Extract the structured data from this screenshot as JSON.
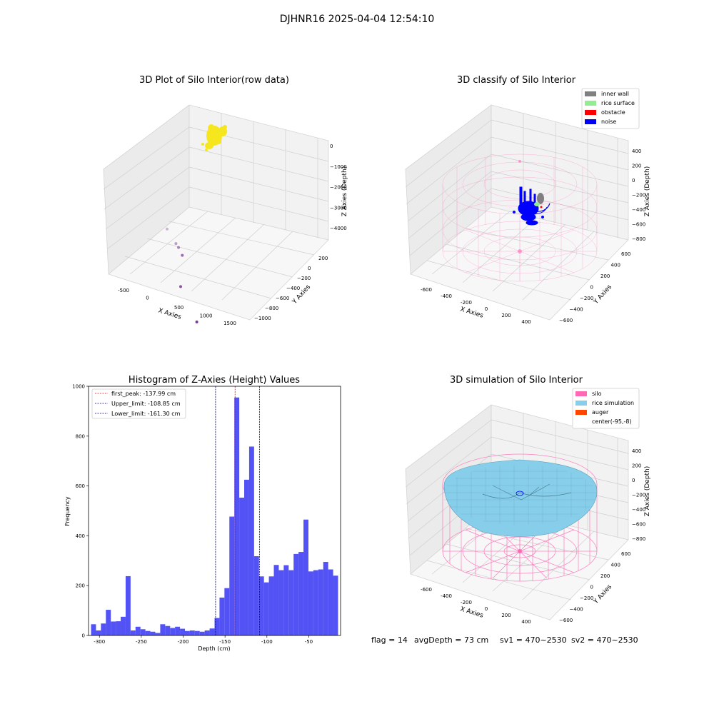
{
  "suptitle": "DJHNR16 2025-04-04 12:54:10",
  "footer": {
    "flag": "flag = 14",
    "avg_depth": "avgDepth = 73 cm",
    "sv1": "sv1 = 470~2530",
    "sv2": "sv2 = 470~2530"
  },
  "colors": {
    "points_yellow": "#f5e61e",
    "points_purple": "#7a3a92",
    "hist_bar": "#4f4ff5",
    "silo_pink": "#ff69b4",
    "rice_blue": "#87ceeb",
    "noise_blue": "#0000ff",
    "rice_green": "#90ee90",
    "obstacle_red": "#ff0000",
    "inner_wall_gray": "#808080",
    "auger_orange": "#ff4500"
  },
  "chart_data": [
    {
      "type": "scatter3d",
      "title": "3D Plot of Silo Interior(row data)",
      "xlabel": "X Axies",
      "ylabel": "Y Axies",
      "zlabel": "Z Axies (Depth)",
      "x_ticks": [
        "-500",
        "0",
        "500",
        "1000",
        "1500"
      ],
      "y_ticks": [
        "200",
        "0",
        "−200",
        "−400",
        "−600",
        "−800",
        "−1000"
      ],
      "z_ticks": [
        "0",
        "−1000",
        "−2000",
        "−3000",
        "−4000"
      ],
      "outlier_points": [
        {
          "x": -450,
          "y": 150,
          "z": -4100
        },
        {
          "x": -120,
          "y": 50,
          "z": -4200
        },
        {
          "x": 0,
          "y": 0,
          "z": -4150
        },
        {
          "x": 150,
          "y": -50,
          "z": -4250
        },
        {
          "x": 700,
          "y": -550,
          "z": -4300
        },
        {
          "x": 1500,
          "y": -900,
          "z": -4400
        }
      ]
    },
    {
      "type": "scatter3d",
      "title": "3D classify of Silo Interior",
      "xlabel": "X Axies",
      "ylabel": "Y Axies",
      "zlabel": "Z Axies (Depth)",
      "x_ticks": [
        "-600",
        "-400",
        "-200",
        "0",
        "200",
        "400"
      ],
      "y_ticks": [
        "600",
        "400",
        "200",
        "0",
        "−200",
        "−400",
        "−600"
      ],
      "z_ticks": [
        "400",
        "200",
        "0",
        "−200",
        "−400",
        "−600",
        "−800"
      ],
      "legend": [
        "inner wall",
        "rice surface",
        "obstacle",
        "noise"
      ],
      "legend_position": "upper right"
    },
    {
      "type": "bar",
      "title": "Histogram of Z-Axies (Height) Values",
      "xlabel": "Depth (cm)",
      "ylabel": "Frequency",
      "xlim": [
        -313,
        -12
      ],
      "ylim": [
        0,
        1000
      ],
      "x_ticks": [
        "-300",
        "-250",
        "-200",
        "-150",
        "-100",
        "-50"
      ],
      "x_tick_values": [
        -300,
        -250,
        -200,
        -150,
        -100,
        -50
      ],
      "y_ticks": [
        "0",
        "200",
        "400",
        "600",
        "800",
        "1000"
      ],
      "y_tick_values": [
        0,
        200,
        400,
        600,
        800,
        1000
      ],
      "bin_start": -310,
      "bin_width": 5.9,
      "values": [
        45,
        20,
        48,
        103,
        56,
        57,
        75,
        238,
        20,
        35,
        25,
        18,
        15,
        10,
        45,
        38,
        30,
        35,
        27,
        18,
        20,
        18,
        15,
        20,
        28,
        70,
        152,
        190,
        477,
        955,
        553,
        625,
        758,
        318,
        237,
        213,
        237,
        283,
        262,
        282,
        262,
        327,
        335,
        465,
        257,
        262,
        265,
        295,
        265,
        240
      ],
      "vlines": [
        {
          "label": "first_peak: -137.99 cm",
          "x": -137.99,
          "color": "#ff0000"
        },
        {
          "label": "Upper_limit: -108.85 cm",
          "x": -108.85,
          "color": "#00008b"
        },
        {
          "label": "Lower_limit: -161.30 cm",
          "x": -161.3,
          "color": "#00008b"
        }
      ],
      "legend_position": "upper left"
    },
    {
      "type": "surface3d",
      "title": "3D simulation of Silo Interior",
      "xlabel": "X Axies",
      "ylabel": "Y Axies",
      "zlabel": "Z Axies (Depth)",
      "x_ticks": [
        "-600",
        "-400",
        "-200",
        "0",
        "200",
        "400"
      ],
      "y_ticks": [
        "600",
        "400",
        "200",
        "0",
        "−200",
        "−400",
        "−600"
      ],
      "z_ticks": [
        "400",
        "200",
        "0",
        "−200",
        "−400",
        "−600",
        "−800"
      ],
      "legend": [
        "silo",
        "rice simulation",
        "auger",
        "center(-95,-8)"
      ],
      "legend_position": "upper right"
    }
  ]
}
